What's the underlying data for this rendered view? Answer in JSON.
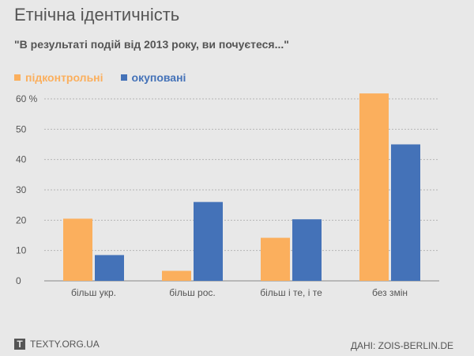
{
  "header": {
    "title": "Етнічна ідентичність",
    "subtitle": "\"В результаті подій від 2013 року, ви почуєтеся...\""
  },
  "chart_data": {
    "type": "bar",
    "title": "Етнічна ідентичність",
    "subtitle": "\"В результаті подій від 2013 року, ви почуєтеся...\"",
    "categories": [
      "більш укр.",
      "більш рос.",
      "більш і те, і те",
      "без змін"
    ],
    "series": [
      {
        "name": "підконтрольні",
        "color": "#fbaf5d",
        "values": [
          20.5,
          3.3,
          14.2,
          61.8
        ]
      },
      {
        "name": "окуповані",
        "color": "#4472b8",
        "values": [
          8.5,
          26.0,
          20.3,
          45.0
        ]
      }
    ],
    "ylim": [
      0,
      60
    ],
    "yticks": [
      "0",
      "10",
      "20",
      "30",
      "40",
      "50",
      "60 %"
    ],
    "grid": true,
    "legend_position": "top-left"
  },
  "footer": {
    "logo_letter": "T",
    "site": "TEXTY.ORG.UA",
    "source": "ДАНІ: ZOIS-BERLIN.DE"
  },
  "colors": {
    "background": "#e8e8e8",
    "text": "#555555",
    "grid": "#b5b5b5"
  }
}
